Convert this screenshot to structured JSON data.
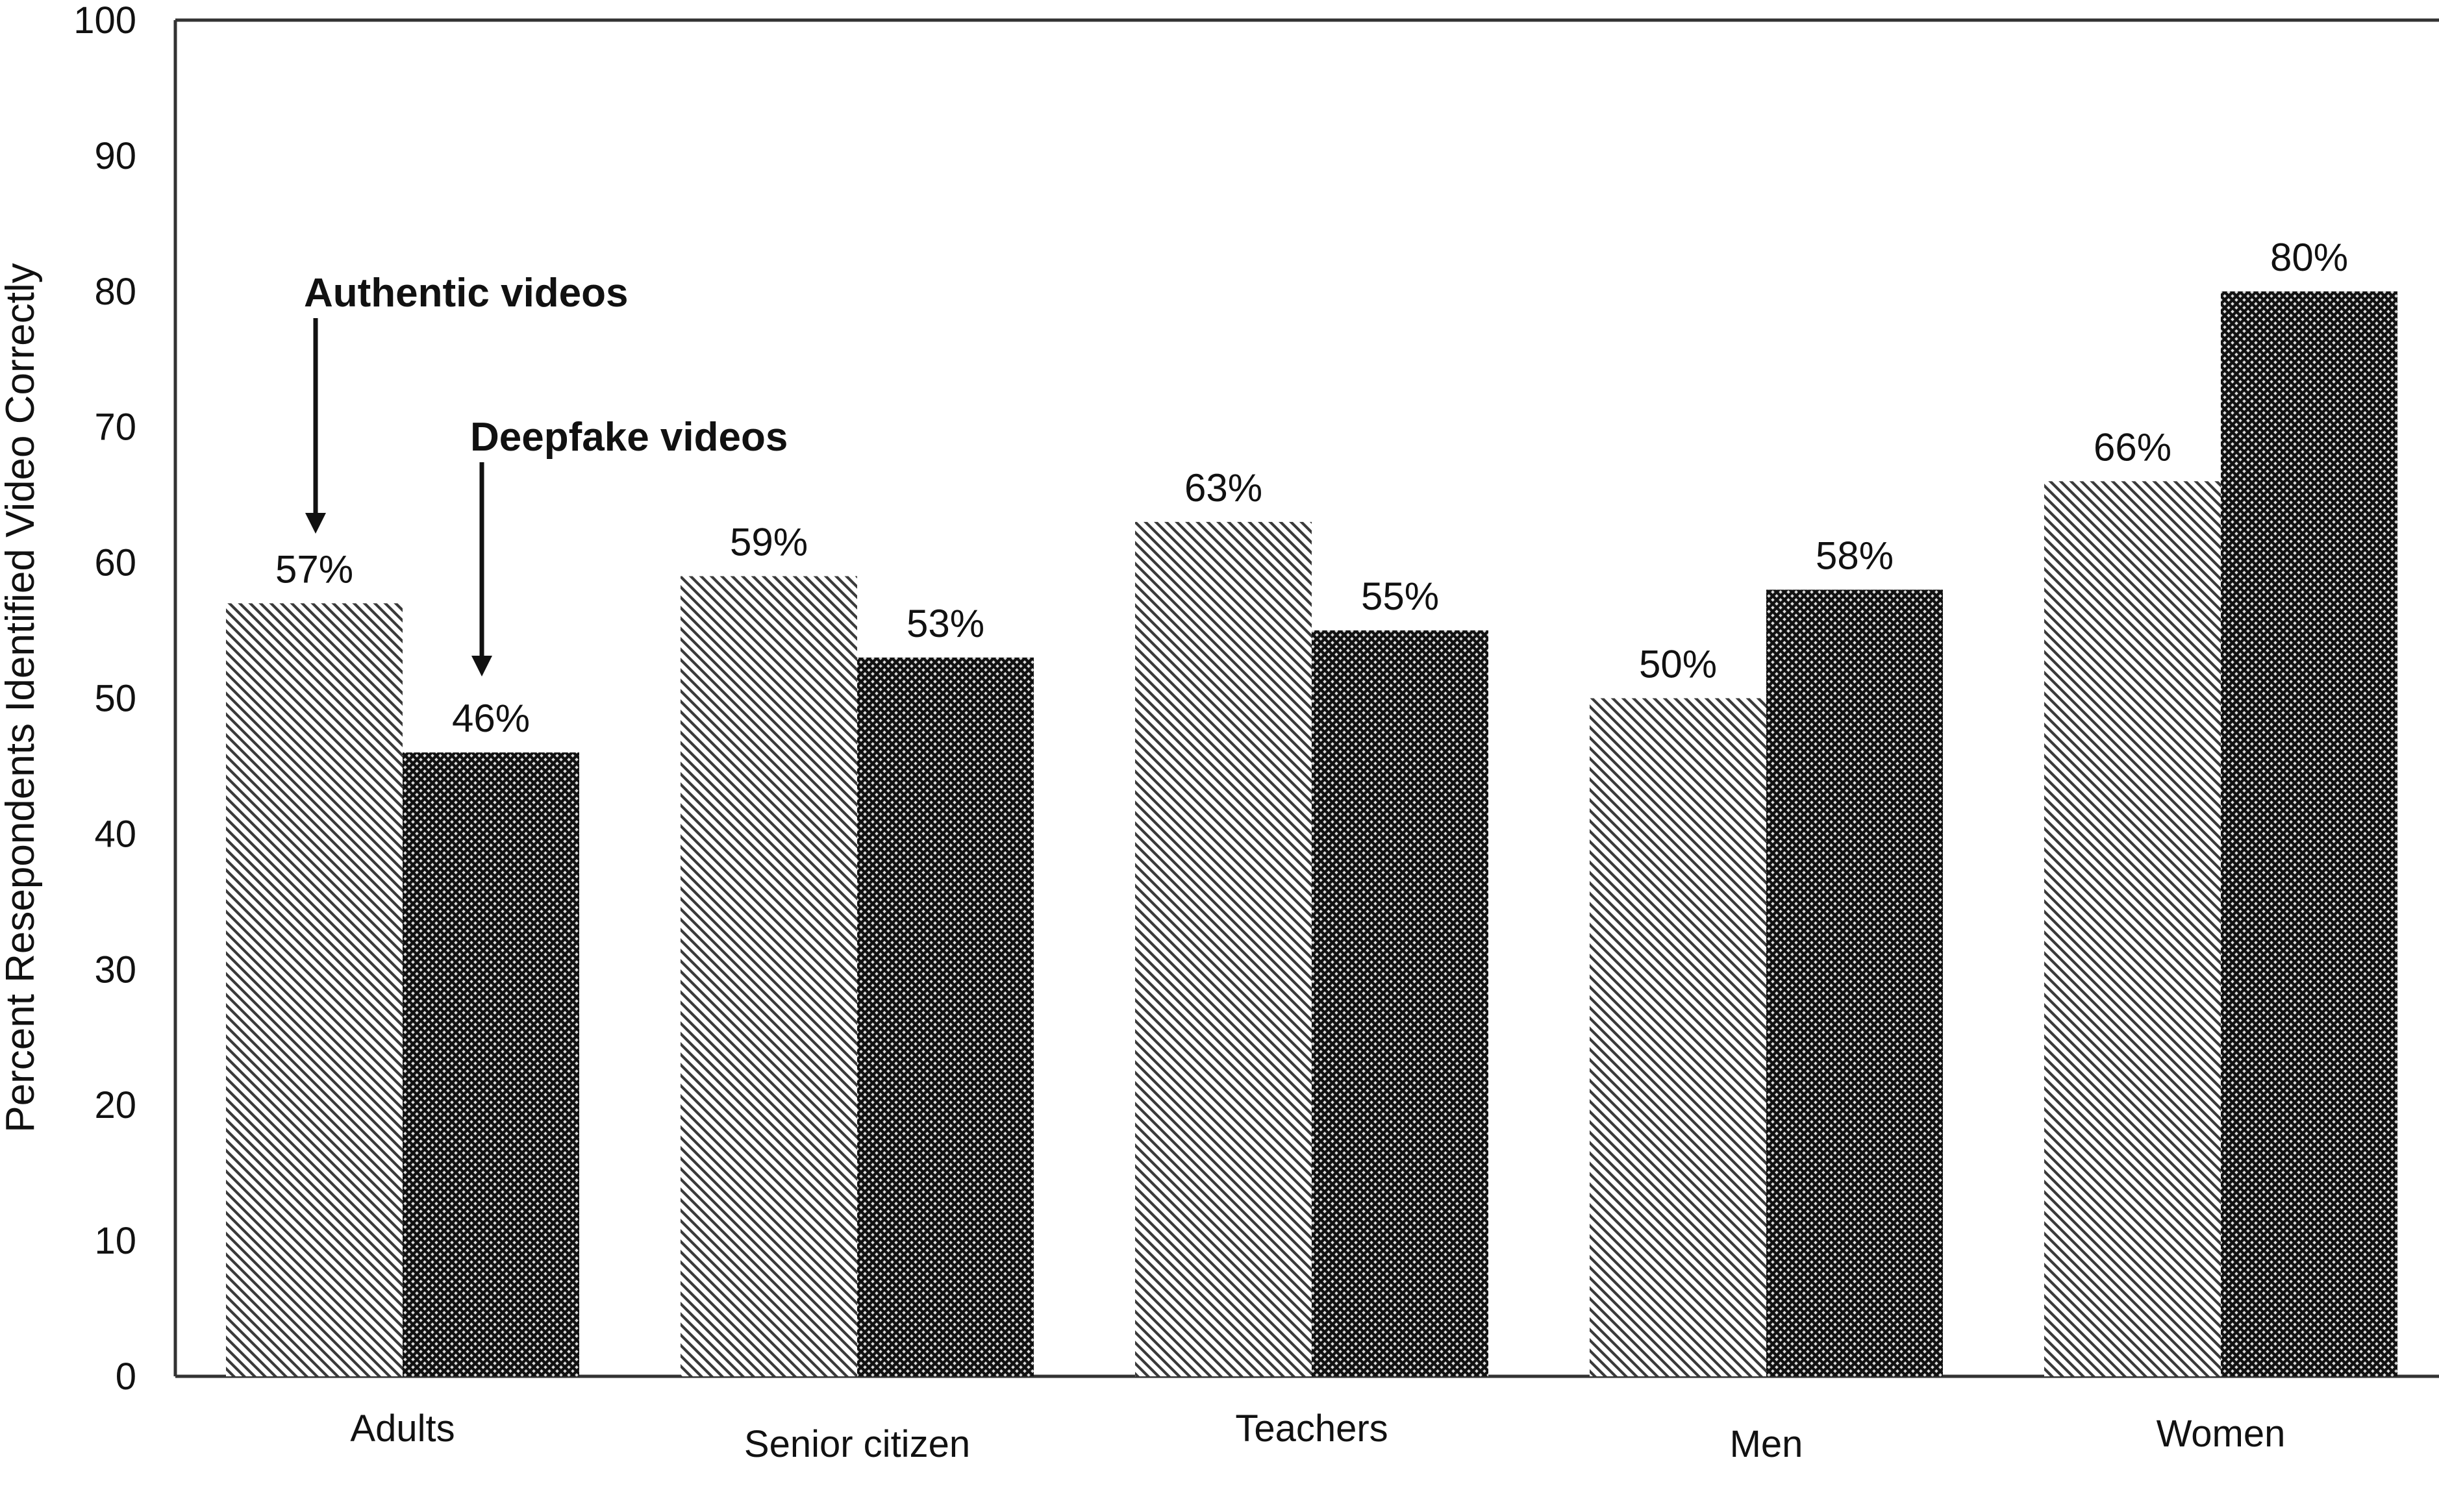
{
  "chart_data": {
    "type": "bar",
    "title": "",
    "xlabel": "",
    "ylabel": "Percent Resepondents Identified Video Correctly",
    "ylim": [
      0,
      100
    ],
    "yticks": [
      0,
      10,
      20,
      30,
      40,
      50,
      60,
      70,
      80,
      90,
      100
    ],
    "categories": [
      "Adults",
      "Senior citizen",
      "Teachers",
      "Men",
      "Women"
    ],
    "series": [
      {
        "values": [
          57,
          59,
          63,
          50,
          66
        ],
        "labels": [
          "57%",
          "59%",
          "63%",
          "50%",
          "66%"
        ],
        "pattern": "diagonal-hatch",
        "color": "#4a4a4a"
      },
      {
        "values": [
          46,
          53,
          55,
          58,
          80
        ],
        "labels": [
          "46%",
          "53%",
          "55%",
          "58%",
          "80%"
        ],
        "pattern": "crosshatch-dark",
        "color": "#1e1e1e"
      }
    ],
    "annotations": [
      {
        "text": "Authentic videos",
        "series_index": 0,
        "category_index": 0
      },
      {
        "text": "Deepfake videos",
        "series_index": 1,
        "category_index": 0
      }
    ],
    "grid": false,
    "legend": "none"
  }
}
